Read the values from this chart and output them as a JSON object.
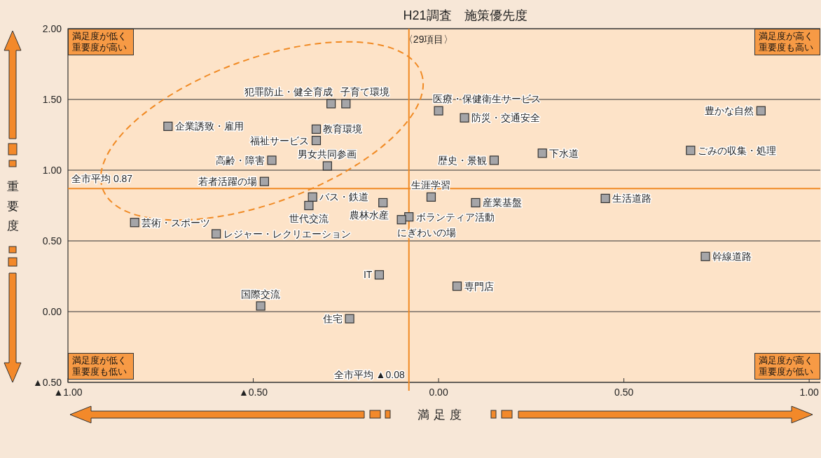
{
  "chart_data": {
    "type": "scatter",
    "title": "H21調査　施策優先度",
    "xlabel": "満足度",
    "ylabel": "重要度",
    "xlim": [
      -1.0,
      1.03
    ],
    "ylim": [
      -0.5,
      2.0
    ],
    "xticks": [
      {
        "value": -1.0,
        "label": "▲1.00"
      },
      {
        "value": -0.5,
        "label": "▲0.50"
      },
      {
        "value": 0,
        "label": "0.00"
      },
      {
        "value": 0.5,
        "label": "0.50"
      },
      {
        "value": 1.0,
        "label": "1.00"
      }
    ],
    "yticks": [
      {
        "value": -0.5,
        "label": "▲0.50"
      },
      {
        "value": 0,
        "label": "0.00"
      },
      {
        "value": 0.5,
        "label": "0.50"
      },
      {
        "value": 1.0,
        "label": "1.00"
      },
      {
        "value": 1.5,
        "label": "1.50"
      },
      {
        "value": 2.0,
        "label": "2.00"
      }
    ],
    "grid": "y",
    "marker": "square",
    "series": [
      {
        "color": "#a5a5a8",
        "x": [
          -0.29,
          -0.25,
          0.0,
          0.87,
          -0.73,
          -0.33,
          0.07,
          -0.33,
          0.28,
          0.68,
          -0.45,
          0.15,
          -0.3,
          -0.47,
          -0.34,
          -0.02,
          0.45,
          -0.15,
          -0.35,
          0.1,
          -0.08,
          -0.1,
          -0.82,
          -0.6,
          0.72,
          -0.16,
          0.05,
          -0.48,
          -0.24
        ],
        "values": [
          1.47,
          1.47,
          1.42,
          1.42,
          1.31,
          1.29,
          1.37,
          1.21,
          1.12,
          1.14,
          1.07,
          1.07,
          1.03,
          0.92,
          0.81,
          0.81,
          0.8,
          0.77,
          0.75,
          0.77,
          0.67,
          0.65,
          0.63,
          0.55,
          0.39,
          0.26,
          0.18,
          0.04,
          -0.05
        ]
      }
    ],
    "ref_lines": [
      {
        "axis": "y",
        "value": 0.87,
        "label": "全市平均 0.87",
        "color": "#f08a24"
      },
      {
        "axis": "x",
        "value": -0.08,
        "label": "全市平均 ▲0.08",
        "color": "#f08a24"
      }
    ],
    "annotations": [
      {
        "text": "犯罪防止・健全育成",
        "x": -0.29,
        "y": 1.47
      },
      {
        "text": "子育て環境",
        "x": -0.25,
        "y": 1.47
      },
      {
        "text": "医療・保健衛生サービス",
        "x": 0.0,
        "y": 1.42
      },
      {
        "text": "豊かな自然",
        "x": 0.87,
        "y": 1.42
      },
      {
        "text": "企業誘致・雇用",
        "x": -0.73,
        "y": 1.31
      },
      {
        "text": "教育環境",
        "x": -0.33,
        "y": 1.29
      },
      {
        "text": "防災・交通安全",
        "x": 0.07,
        "y": 1.37
      },
      {
        "text": "福祉サービス",
        "x": -0.33,
        "y": 1.21
      },
      {
        "text": "下水道",
        "x": 0.28,
        "y": 1.12
      },
      {
        "text": "ごみの収集・処理",
        "x": 0.68,
        "y": 1.14
      },
      {
        "text": "高齢・障害",
        "x": -0.45,
        "y": 1.07
      },
      {
        "text": "歴史・景観",
        "x": 0.15,
        "y": 1.07
      },
      {
        "text": "男女共同参画",
        "x": -0.3,
        "y": 1.03
      },
      {
        "text": "若者活躍の場",
        "x": -0.47,
        "y": 0.92
      },
      {
        "text": "バス・鉄道",
        "x": -0.34,
        "y": 0.81
      },
      {
        "text": "生涯学習",
        "x": -0.02,
        "y": 0.81
      },
      {
        "text": "生活道路",
        "x": 0.45,
        "y": 0.8
      },
      {
        "text": "農林水産",
        "x": -0.15,
        "y": 0.77
      },
      {
        "text": "世代交流",
        "x": -0.35,
        "y": 0.75
      },
      {
        "text": "産業基盤",
        "x": 0.1,
        "y": 0.77
      },
      {
        "text": "ボランティア活動",
        "x": -0.08,
        "y": 0.67
      },
      {
        "text": "にぎわいの場",
        "x": -0.1,
        "y": 0.65
      },
      {
        "text": "芸術・スポーツ",
        "x": -0.82,
        "y": 0.63
      },
      {
        "text": "レジャー・レクリエーション",
        "x": -0.6,
        "y": 0.55
      },
      {
        "text": "幹線道路",
        "x": 0.72,
        "y": 0.39
      },
      {
        "text": "IT",
        "x": -0.16,
        "y": 0.26
      },
      {
        "text": "専門店",
        "x": 0.05,
        "y": 0.18
      },
      {
        "text": "国際交流",
        "x": -0.48,
        "y": 0.04
      },
      {
        "text": "住宅",
        "x": -0.24,
        "y": -0.05
      },
      "満足度が低く重要度が高い",
      "満足度が高く重要度も高い",
      "満足度が低く重要度も低い",
      "満足度が高く重要度が低い",
      "〈29項目〉"
    ]
  }
}
